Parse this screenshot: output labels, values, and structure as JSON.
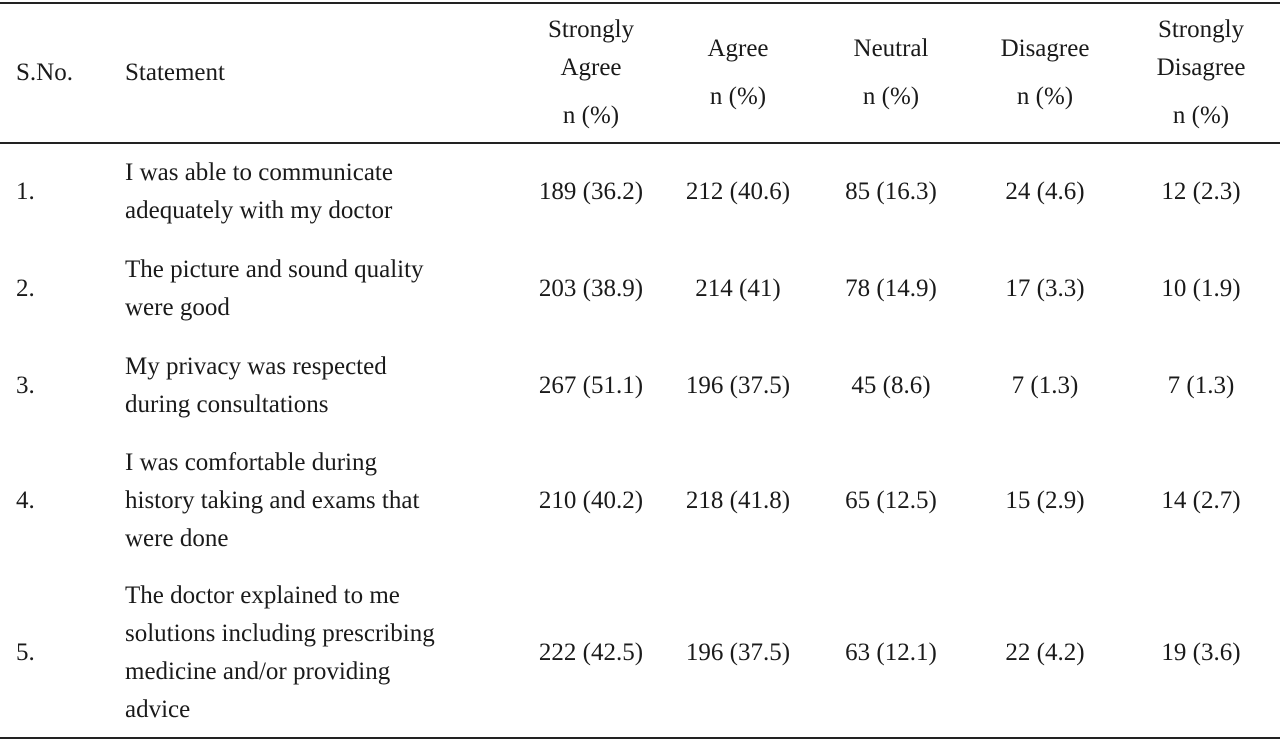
{
  "table": {
    "headers": {
      "sno": "S.No.",
      "statement": "Statement",
      "strongly_agree": [
        "Strongly",
        "Agree",
        "n (%)"
      ],
      "agree": [
        "Agree",
        "n (%)"
      ],
      "neutral": [
        "Neutral",
        "n (%)"
      ],
      "disagree": [
        "Disagree",
        "n (%)"
      ],
      "strongly_disagree": [
        "Strongly",
        "Disagree",
        "n (%)"
      ]
    },
    "rows": [
      {
        "sno": "1.",
        "statement_lines": [
          "I was able to communicate",
          "adequately with my doctor"
        ],
        "strongly_agree": "189 (36.2)",
        "agree": "212 (40.6)",
        "neutral": "85 (16.3)",
        "disagree": "24 (4.6)",
        "strongly_disagree": "12 (2.3)"
      },
      {
        "sno": "2.",
        "statement_lines": [
          "The picture and sound quality",
          "were good"
        ],
        "strongly_agree": "203 (38.9)",
        "agree": "214 (41)",
        "neutral": "78 (14.9)",
        "disagree": "17 (3.3)",
        "strongly_disagree": "10 (1.9)"
      },
      {
        "sno": "3.",
        "statement_lines": [
          "My privacy was respected",
          "during consultations"
        ],
        "strongly_agree": "267 (51.1)",
        "agree": "196 (37.5)",
        "neutral": "45 (8.6)",
        "disagree": "7 (1.3)",
        "strongly_disagree": "7 (1.3)"
      },
      {
        "sno": "4.",
        "statement_lines": [
          "I was comfortable during",
          "history taking and exams that",
          "were done"
        ],
        "strongly_agree": "210 (40.2)",
        "agree": "218 (41.8)",
        "neutral": "65 (12.5)",
        "disagree": "15 (2.9)",
        "strongly_disagree": "14 (2.7)"
      },
      {
        "sno": "5.",
        "statement_lines": [
          "The doctor explained to me",
          "solutions including prescribing",
          "medicine and/or providing",
          "advice"
        ],
        "strongly_agree": "222 (42.5)",
        "agree": "196 (37.5)",
        "neutral": "63 (12.1)",
        "disagree": "22 (4.2)",
        "strongly_disagree": "19 (3.6)"
      }
    ]
  }
}
